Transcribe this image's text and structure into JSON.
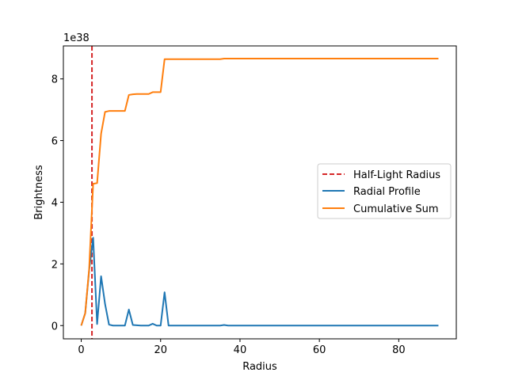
{
  "chart_data": {
    "type": "line",
    "title": "",
    "xlabel": "Radius",
    "ylabel": "Brightness",
    "y_offset_text": "1e38",
    "xlim": [
      -4.5,
      94.5
    ],
    "ylim": [
      -0.43,
      9.07
    ],
    "x_ticks": [
      0,
      20,
      40,
      60,
      80
    ],
    "y_ticks": [
      0,
      2,
      4,
      6,
      8
    ],
    "grid": false,
    "legend_position": "center-right",
    "vline": {
      "name": "Half-Light Radius",
      "x": 2.7,
      "color": "#d62728",
      "style": "dashed"
    },
    "series": [
      {
        "name": "Radial Profile",
        "color": "#1f77b4",
        "x": [
          0,
          1,
          2,
          3,
          4,
          5,
          6,
          7,
          8,
          9,
          10,
          11,
          12,
          13,
          14,
          15,
          16,
          17,
          18,
          19,
          20,
          21,
          22,
          23,
          24,
          25,
          30,
          35,
          36,
          37,
          40,
          50,
          60,
          70,
          80,
          90
        ],
        "y": [
          0.0,
          0.4,
          1.8,
          2.85,
          0.05,
          1.6,
          0.7,
          0.03,
          0.0,
          0.0,
          0.0,
          0.0,
          0.52,
          0.02,
          0.01,
          0.0,
          0.0,
          0.0,
          0.06,
          0.0,
          0.0,
          1.08,
          0.0,
          0.0,
          0.0,
          0.0,
          0.0,
          0.0,
          0.02,
          0.0,
          0.0,
          0.0,
          0.0,
          0.0,
          0.0,
          0.0
        ]
      },
      {
        "name": "Cumulative Sum",
        "color": "#ff7f0e",
        "x": [
          0,
          1,
          2,
          3,
          4,
          5,
          6,
          7,
          8,
          9,
          10,
          11,
          12,
          13,
          14,
          15,
          16,
          17,
          18,
          19,
          20,
          21,
          22,
          23,
          24,
          25,
          30,
          35,
          36,
          37,
          40,
          50,
          60,
          70,
          80,
          90
        ],
        "y": [
          0.0,
          0.4,
          1.85,
          4.6,
          4.62,
          6.22,
          6.93,
          6.96,
          6.96,
          6.96,
          6.96,
          6.96,
          7.48,
          7.5,
          7.51,
          7.51,
          7.51,
          7.51,
          7.57,
          7.57,
          7.57,
          8.64,
          8.64,
          8.64,
          8.64,
          8.64,
          8.64,
          8.64,
          8.66,
          8.66,
          8.66,
          8.66,
          8.66,
          8.66,
          8.66,
          8.66
        ]
      }
    ]
  }
}
